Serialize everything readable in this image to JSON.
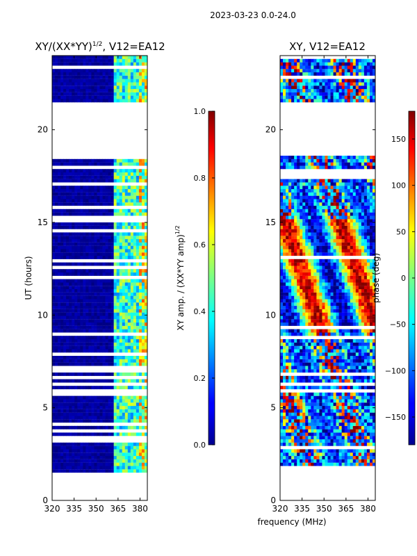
{
  "suptitle": "2023-03-23 0.0-24.0",
  "colors": {
    "low": "#00008b",
    "high": "#7f0000",
    "gap": "#ffffff"
  },
  "chart_data": [
    {
      "type": "heatmap",
      "title": "XY/(XX*YY)^1/2, V12=EA12",
      "title_main": "XY/(XX*YY)",
      "title_exp": "1/2",
      "title_tail": ", V12=EA12",
      "xlabel": "",
      "ylabel": "UT (hours)",
      "xlim": [
        320,
        385
      ],
      "ylim": [
        0,
        24
      ],
      "xticks": [
        320,
        335,
        350,
        365,
        380
      ],
      "yticks": [
        0,
        5,
        10,
        15,
        20
      ],
      "data_range_hours": [
        1.5,
        24.0
      ],
      "gap_hours": [
        [
          18.6,
          21.5
        ]
      ],
      "colorbar": {
        "label_main": "XY amp. / (XX*YY amp)",
        "label_exp": "1/2",
        "range": [
          0.0,
          1.0
        ],
        "ticks": [
          "0.0",
          "0.2",
          "0.4",
          "0.6",
          "0.8",
          "1.0"
        ]
      }
    },
    {
      "type": "heatmap",
      "title": "XY, V12=EA12",
      "xlabel": "frequency (MHz)",
      "ylabel": "",
      "xlim": [
        320,
        385
      ],
      "ylim": [
        0,
        24
      ],
      "xticks": [
        320,
        335,
        350,
        365,
        380
      ],
      "yticks": [
        0,
        5,
        10,
        15,
        20
      ],
      "data_range_hours": [
        1.5,
        24.0
      ],
      "gap_hours": [
        [
          18.6,
          21.5
        ]
      ],
      "colorbar": {
        "label": "phase (deg)",
        "range": [
          -180,
          180
        ],
        "ticks": [
          "-150",
          "-100",
          "-50",
          "0",
          "50",
          "100",
          "150"
        ]
      }
    }
  ]
}
